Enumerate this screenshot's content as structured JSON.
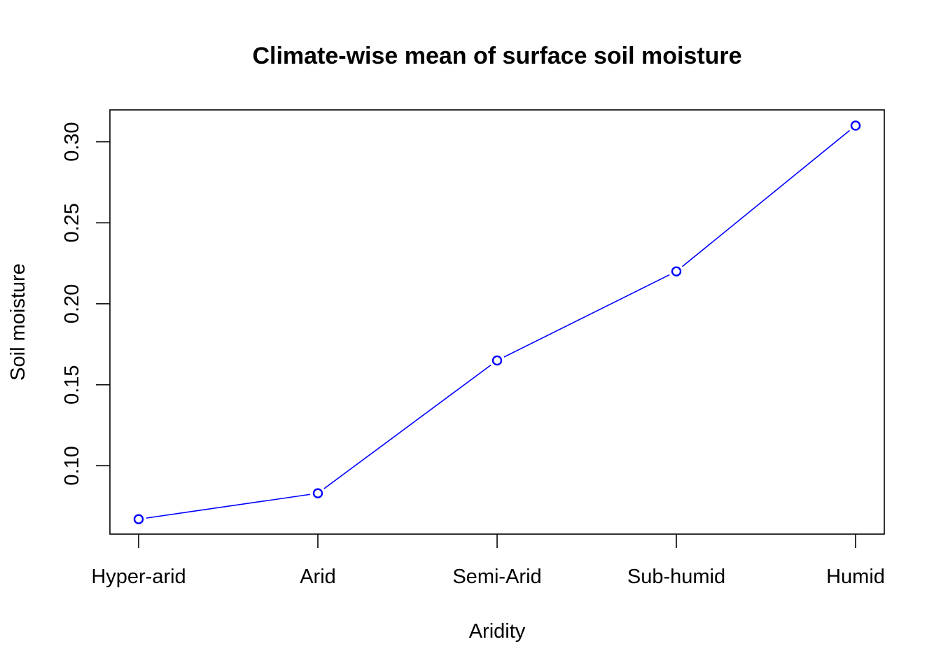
{
  "chart_data": {
    "type": "line",
    "title": "Climate-wise mean of surface soil moisture",
    "xlabel": "Aridity",
    "ylabel": "Soil moisture",
    "categories": [
      "Hyper-arid",
      "Arid",
      "Semi-Arid",
      "Sub-humid",
      "Humid"
    ],
    "values": [
      0.067,
      0.083,
      0.165,
      0.22,
      0.31
    ],
    "yticks": [
      0.1,
      0.15,
      0.2,
      0.25,
      0.3
    ],
    "ytick_labels": [
      "0.10",
      "0.15",
      "0.20",
      "0.25",
      "0.30"
    ],
    "ylim": [
      0.0578,
      0.3197
    ],
    "grid": false,
    "legend": "none",
    "line_color": "#0000ff",
    "marker": "open-circle"
  }
}
